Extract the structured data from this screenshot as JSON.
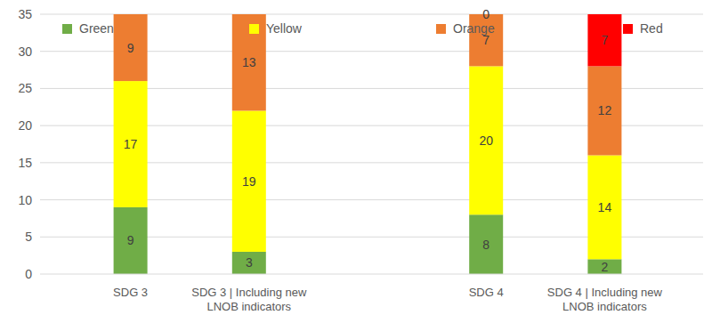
{
  "chart_data": {
    "type": "bar",
    "stacked": true,
    "data_labels": true,
    "grid": true,
    "legend": "top",
    "categories": [
      "SDG 3",
      "SDG 3 | Including new LNOB indicators",
      null,
      "SDG 4",
      "SDG 4 | Including new LNOB indicators"
    ],
    "series": [
      {
        "name": "Green",
        "color": "#70ad47",
        "values": [
          9,
          3,
          null,
          8,
          2
        ]
      },
      {
        "name": "Yellow",
        "color": "#ffff00",
        "values": [
          17,
          19,
          null,
          20,
          14
        ]
      },
      {
        "name": "Orange",
        "color": "#ed7d31",
        "values": [
          9,
          13,
          null,
          7,
          12
        ]
      },
      {
        "name": "Red",
        "color": "#ff0000",
        "values": [
          null,
          null,
          null,
          0,
          7
        ]
      }
    ],
    "ylim": [
      0,
      35
    ],
    "yticks": [
      0,
      5,
      10,
      15,
      20,
      25,
      30,
      35
    ]
  }
}
